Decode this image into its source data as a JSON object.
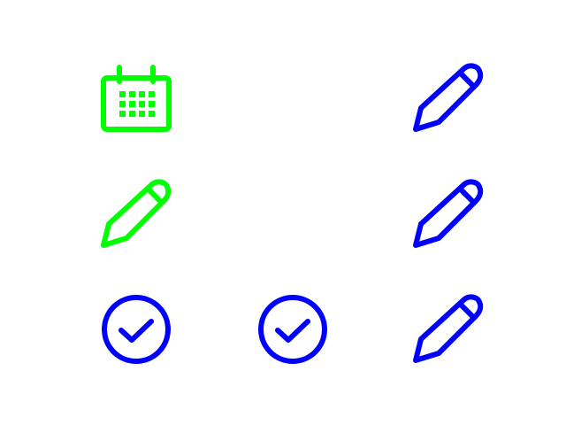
{
  "colors": {
    "green": "#00ff00",
    "blue": "#0000ff",
    "background": "#ffffff"
  },
  "grid": {
    "rows": [
      [
        {
          "icon": "calendar-icon",
          "color": "green"
        },
        null,
        {
          "icon": "pencil-icon",
          "color": "blue"
        }
      ],
      [
        {
          "icon": "pencil-icon",
          "color": "green"
        },
        null,
        {
          "icon": "pencil-icon",
          "color": "blue"
        }
      ],
      [
        {
          "icon": "check-circle-icon",
          "color": "blue"
        },
        {
          "icon": "check-circle-icon",
          "color": "blue"
        },
        {
          "icon": "pencil-icon",
          "color": "blue"
        }
      ]
    ]
  }
}
